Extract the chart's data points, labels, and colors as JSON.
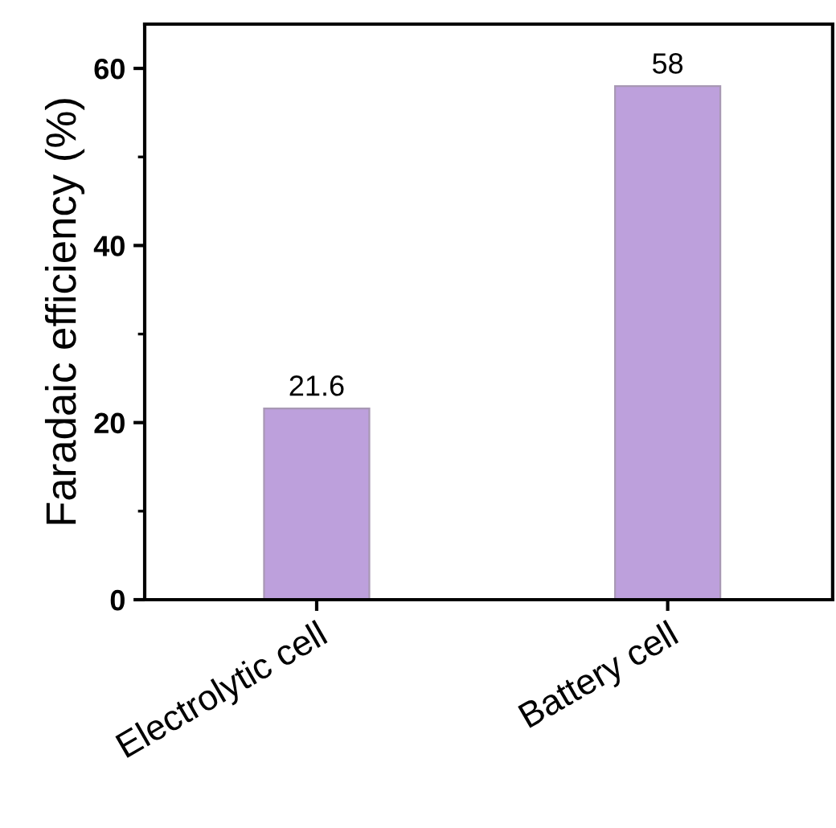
{
  "chart_data": {
    "type": "bar",
    "ylabel": "Faradaic efficiency (%)",
    "categories": [
      "Electrolytic cell",
      "Battery cell"
    ],
    "values": [
      21.6,
      58
    ],
    "color": "#bda0dc",
    "ylim": [
      0,
      65
    ],
    "yticks": [
      0,
      20,
      40,
      60
    ],
    "data_labels": true,
    "grid": false,
    "legend": false
  }
}
